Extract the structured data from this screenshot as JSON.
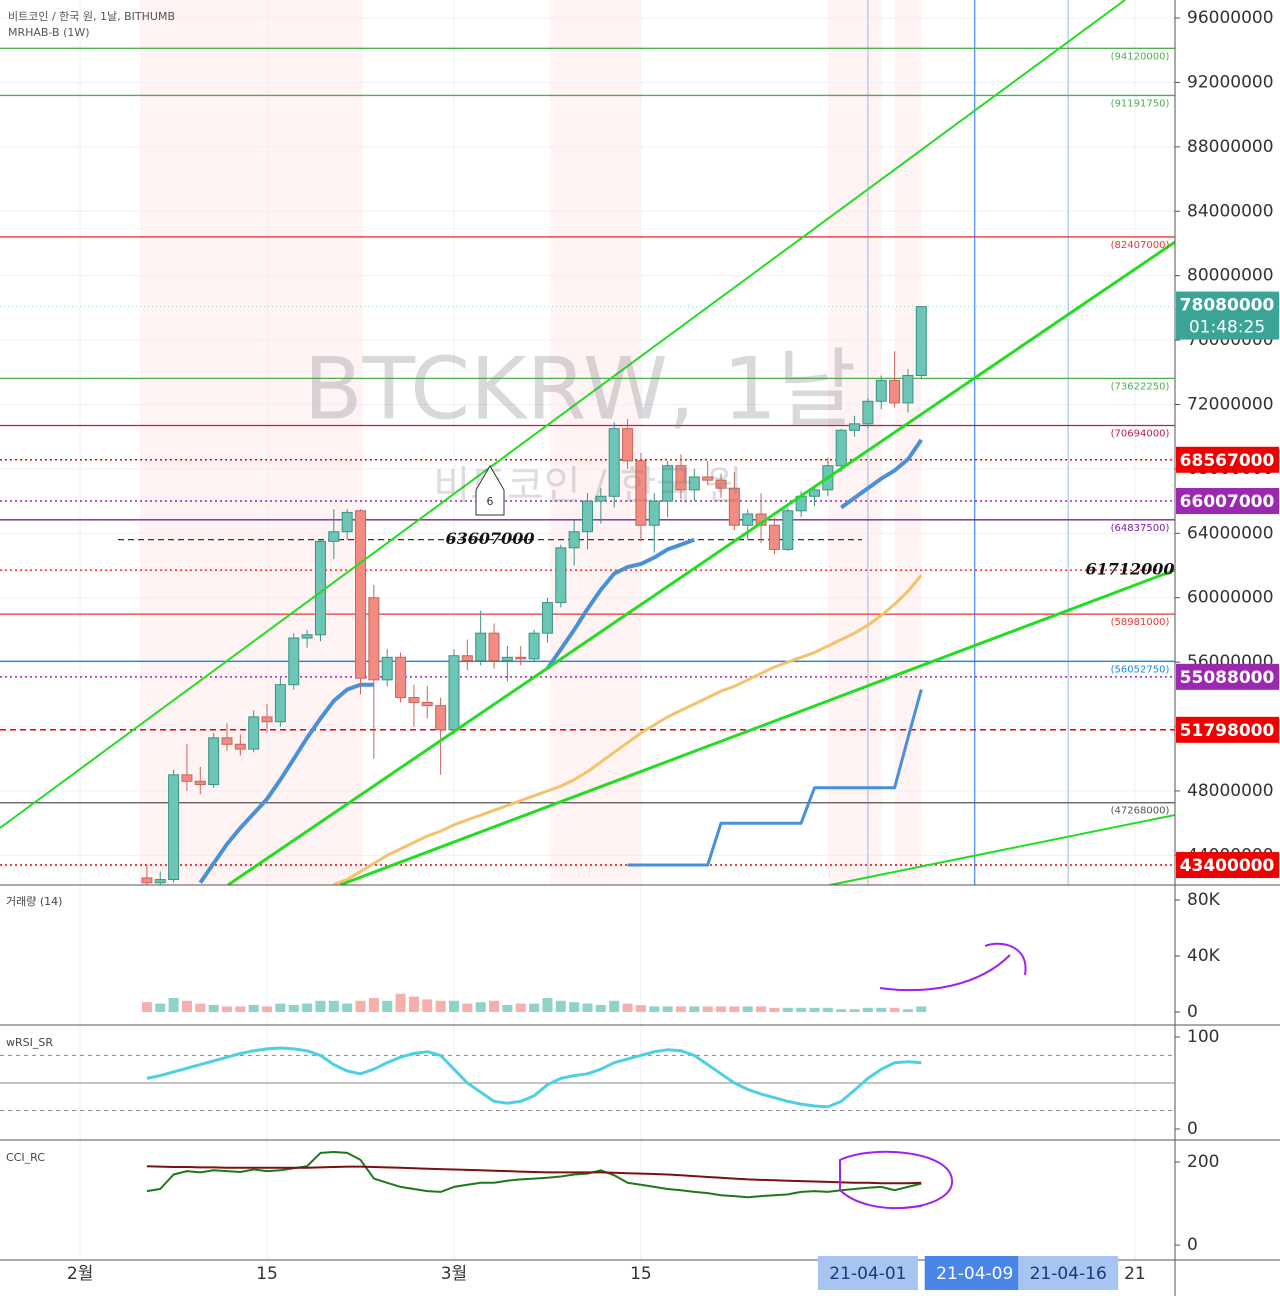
{
  "header": {
    "symbol": "비트코인 / 한국 원, 1날, BITHUMB",
    "indicator": "MRHAB-B (1W)"
  },
  "chart_data": [
    {
      "type": "candlestick",
      "title": "BTCKRW, 1날",
      "subtitle": "비트코인 / 한국 원",
      "callout": "6",
      "x": [
        "21-02-06",
        "21-02-07",
        "21-02-08",
        "21-02-09",
        "21-02-10",
        "21-02-11",
        "21-02-12",
        "21-02-13",
        "21-02-14",
        "21-02-15",
        "21-02-16",
        "21-02-17",
        "21-02-18",
        "21-02-19",
        "21-02-20",
        "21-02-21",
        "21-02-22",
        "21-02-23",
        "21-02-24",
        "21-02-25",
        "21-02-26",
        "21-02-27",
        "21-02-28",
        "21-03-01",
        "21-03-02",
        "21-03-03",
        "21-03-04",
        "21-03-05",
        "21-03-06",
        "21-03-07",
        "21-03-08",
        "21-03-09",
        "21-03-10",
        "21-03-11",
        "21-03-12",
        "21-03-13",
        "21-03-14",
        "21-03-15",
        "21-03-16",
        "21-03-17",
        "21-03-18",
        "21-03-19",
        "21-03-20",
        "21-03-21",
        "21-03-22",
        "21-03-23",
        "21-03-24",
        "21-03-25",
        "21-03-26",
        "21-03-27",
        "21-03-28",
        "21-03-29",
        "21-03-30",
        "21-03-31",
        "21-04-01",
        "21-04-02",
        "21-04-03",
        "21-04-04",
        "21-04-05"
      ],
      "open": [
        42600000,
        42300000,
        42500000,
        49000000,
        48600000,
        48400000,
        51300000,
        50900000,
        50600000,
        52600000,
        52300000,
        54600000,
        57500000,
        57700000,
        63500000,
        64100000,
        65400000,
        60000000,
        54900000,
        56300000,
        53800000,
        53500000,
        53300000,
        51800000,
        56400000,
        56100000,
        57800000,
        56100000,
        56300000,
        56200000,
        57800000,
        59700000,
        63100000,
        64100000,
        66000000,
        66300000,
        70500000,
        68500000,
        64500000,
        66000000,
        68200000,
        66700000,
        67500000,
        67300000,
        66800000,
        64500000,
        65200000,
        64500000,
        63000000,
        65400000,
        66300000,
        66700000,
        68200000,
        70400000,
        70800000,
        72200000,
        73500000,
        72100000,
        73800000
      ],
      "high": [
        43400000,
        43000000,
        49300000,
        50900000,
        49500000,
        51600000,
        52200000,
        51500000,
        53000000,
        53400000,
        55000000,
        57800000,
        58000000,
        63600000,
        65500000,
        65500000,
        65500000,
        60800000,
        56800000,
        56600000,
        54600000,
        54500000,
        53800000,
        56800000,
        57400000,
        59200000,
        58400000,
        57000000,
        57000000,
        58000000,
        60000000,
        63300000,
        64800000,
        66500000,
        66800000,
        70900000,
        71100000,
        69000000,
        66500000,
        68500000,
        68900000,
        68000000,
        68500000,
        67700000,
        67800000,
        65500000,
        66500000,
        65000000,
        65600000,
        66600000,
        66800000,
        68700000,
        70500000,
        71300000,
        72400000,
        73800000,
        75300000,
        74200000,
        78100000
      ],
      "low": [
        42000000,
        41800000,
        42300000,
        48000000,
        47800000,
        48200000,
        50500000,
        50200000,
        50400000,
        51600000,
        52000000,
        54300000,
        56900000,
        57300000,
        62400000,
        63600000,
        54000000,
        50000000,
        54500000,
        53500000,
        52000000,
        52500000,
        49000000,
        51500000,
        55500000,
        55800000,
        55600000,
        54800000,
        55800000,
        56000000,
        57200000,
        59400000,
        62000000,
        63000000,
        64600000,
        65600000,
        68000000,
        63500000,
        62800000,
        65000000,
        66100000,
        66000000,
        67000000,
        66200000,
        64200000,
        63600000,
        63400000,
        62700000,
        62900000,
        65000000,
        65700000,
        66300000,
        67800000,
        70000000,
        70500000,
        71700000,
        71800000,
        71500000,
        73600000
      ],
      "close": [
        42300000,
        42500000,
        49000000,
        48600000,
        48400000,
        51300000,
        50900000,
        50600000,
        52600000,
        52300000,
        54600000,
        57500000,
        57700000,
        63500000,
        64100000,
        65300000,
        55000000,
        54900000,
        56300000,
        53800000,
        53500000,
        53300000,
        51800000,
        56400000,
        56100000,
        57800000,
        56100000,
        56300000,
        56200000,
        57800000,
        59700000,
        63100000,
        64100000,
        66000000,
        66300000,
        70500000,
        68500000,
        64500000,
        66000000,
        68200000,
        66700000,
        67500000,
        67300000,
        66800000,
        64500000,
        65200000,
        64500000,
        63000000,
        65400000,
        66300000,
        66700000,
        68200000,
        70400000,
        70800000,
        72200000,
        73500000,
        72100000,
        73800000,
        78080000
      ],
      "up_color": "#6cc5b5",
      "down_color": "#f28b82",
      "series": [
        {
          "color": "#4a90d9",
          "width": 4,
          "values": [
            null,
            null,
            null,
            null,
            42300000,
            43500000,
            44700000,
            45700000,
            46600000,
            47500000,
            48700000,
            50000000,
            51300000,
            52500000,
            53600000,
            54300000,
            54600000,
            54600000,
            null,
            null,
            null,
            null,
            null,
            null,
            null,
            null,
            null,
            null,
            null,
            null,
            55600000,
            56800000,
            58000000,
            59300000,
            60500000,
            61500000,
            61900000,
            62100000,
            62500000,
            63000000,
            63300000,
            63600000,
            null,
            null,
            null,
            null,
            null,
            null,
            null,
            null,
            null,
            null,
            65600000,
            66200000,
            66800000,
            67400000,
            67900000,
            68600000,
            69800000
          ]
        },
        {
          "color": "#f5c26b",
          "width": 3,
          "values": [
            null,
            null,
            null,
            null,
            null,
            null,
            null,
            null,
            null,
            null,
            null,
            null,
            null,
            null,
            42200000,
            42500000,
            43000000,
            43500000,
            44000000,
            44400000,
            44800000,
            45200000,
            45500000,
            45900000,
            46200000,
            46500000,
            46800000,
            47100000,
            47400000,
            47700000,
            48000000,
            48300000,
            48700000,
            49200000,
            49800000,
            50400000,
            51000000,
            51600000,
            52100000,
            52600000,
            53000000,
            53400000,
            53800000,
            54200000,
            54500000,
            54900000,
            55300000,
            55700000,
            56000000,
            56300000,
            56600000,
            57000000,
            57400000,
            57800000,
            58300000,
            58900000,
            59600000,
            60400000,
            61400000
          ]
        },
        {
          "color": "#4a90d9",
          "width": 3,
          "values": [
            null,
            null,
            null,
            null,
            null,
            null,
            null,
            null,
            null,
            null,
            null,
            null,
            null,
            null,
            null,
            null,
            null,
            null,
            null,
            null,
            null,
            null,
            null,
            null,
            null,
            null,
            null,
            null,
            null,
            null,
            null,
            null,
            null,
            null,
            null,
            null,
            43400000,
            43400000,
            43400000,
            43400000,
            43400000,
            43400000,
            43400000,
            46000000,
            46000000,
            46000000,
            46000000,
            46000000,
            46000000,
            46000000,
            48200000,
            48200000,
            48200000,
            48200000,
            48200000,
            48200000,
            48200000,
            51300000,
            54300000
          ]
        }
      ],
      "hlines": [
        {
          "value": 94120000,
          "label": "(94120000)",
          "color": "#4caf50"
        },
        {
          "value": 91191750,
          "label": "(91191750)",
          "color": "#4caf50"
        },
        {
          "value": 82407000,
          "label": "(82407000)",
          "color": "#e53935"
        },
        {
          "value": 73622250,
          "label": "(73622250)",
          "color": "#4caf50"
        },
        {
          "value": 70694000,
          "label": "(70694000)",
          "color": "#c2185b"
        },
        {
          "value": 64837500,
          "label": "(64837500)",
          "color": "#7b1fa2"
        },
        {
          "value": 58981000,
          "label": "(58981000)",
          "color": "#e53935"
        },
        {
          "value": 56052750,
          "label": "(56052750)",
          "color": "#1e88e5"
        },
        {
          "value": 47268000,
          "label": "(47268000)",
          "color": "#555555"
        }
      ],
      "price_tags": [
        {
          "value": 68567000,
          "color": "#f00000",
          "style": "dotted"
        },
        {
          "value": 66007000,
          "color": "#9c27b0",
          "style": "dotted"
        },
        {
          "value": 55088000,
          "color": "#9c27b0",
          "style": "dotted"
        },
        {
          "value": 51798000,
          "color": "#f00000",
          "style": "dashed"
        },
        {
          "value": 43400000,
          "color": "#f00000",
          "style": "dotted"
        }
      ],
      "last_price": {
        "value": 78080000,
        "timer": "01:48:25",
        "color": "#3aa596"
      },
      "annotations": [
        {
          "value": 63607000,
          "color": "#333333",
          "style": "dashed"
        },
        {
          "value": 61712000,
          "color": "#f00000",
          "style": "dotted"
        }
      ],
      "vlines": [
        {
          "value": "21-04-01",
          "color": "#a8c4f0"
        },
        {
          "value": "21-04-09",
          "color": "#4a86e8"
        },
        {
          "value": "21-04-16",
          "color": "#a8c4f0"
        }
      ],
      "xlim": [
        "21-01-26",
        "21-04-24"
      ],
      "xticks": [
        {
          "value": "21-02-01",
          "label": "2월"
        },
        {
          "value": "21-02-15",
          "label": "15"
        },
        {
          "value": "21-03-01",
          "label": "3월"
        },
        {
          "value": "21-03-15",
          "label": "15"
        },
        {
          "value": "21-04-21",
          "label": "21"
        }
      ],
      "ylim": [
        42160000,
        97120000
      ],
      "yticks": [
        44000000,
        48000000,
        52000000,
        56000000,
        60000000,
        64000000,
        68000000,
        72000000,
        76000000,
        80000000,
        84000000,
        88000000,
        92000000,
        96000000
      ],
      "grid": true
    },
    {
      "type": "bar",
      "title": "거래량 (14)",
      "up_color": "#8fd3c8",
      "down_color": "#f5b0ac",
      "values": [
        7000,
        6000,
        10000,
        8000,
        6000,
        5000,
        4000,
        4000,
        5000,
        4000,
        6000,
        5000,
        6000,
        8000,
        8000,
        6000,
        8000,
        10000,
        8000,
        13000,
        11000,
        9000,
        8000,
        8000,
        6000,
        7000,
        8000,
        5000,
        6000,
        6000,
        10000,
        8000,
        7000,
        6000,
        5000,
        8000,
        6000,
        5000,
        4000,
        4000,
        4000,
        4000,
        4000,
        4000,
        4000,
        4000,
        4000,
        3000,
        3000,
        3000,
        3000,
        3000,
        2000,
        2000,
        3000,
        3000,
        3000,
        2000,
        4000
      ],
      "ylim": [
        -9300,
        90700
      ],
      "yticks": [
        0,
        {
          "value": 40000,
          "label": "40K"
        },
        {
          "value": 80000,
          "label": "80K"
        }
      ]
    },
    {
      "type": "line",
      "title": "wRSI_SR",
      "series": [
        {
          "color": "#4dd0e1",
          "width": 3,
          "values": [
            55,
            58,
            62,
            66,
            70,
            74,
            78,
            82,
            85,
            87,
            88,
            87,
            85,
            80,
            70,
            63,
            60,
            65,
            72,
            78,
            82,
            84,
            80,
            65,
            50,
            40,
            30,
            28,
            30,
            36,
            48,
            55,
            58,
            60,
            65,
            72,
            76,
            80,
            84,
            86,
            85,
            80,
            70,
            60,
            50,
            43,
            38,
            34,
            30,
            27,
            25,
            24,
            30,
            42,
            55,
            65,
            72,
            73,
            72
          ]
        }
      ],
      "levels": [
        80,
        50,
        20
      ],
      "ylim": [
        -12,
        113
      ],
      "yticks": [
        0,
        100
      ]
    },
    {
      "type": "line",
      "title": "CCI_RC",
      "series": [
        {
          "color": "#1b7a1b",
          "width": 2,
          "values": [
            130,
            135,
            170,
            178,
            175,
            180,
            178,
            176,
            182,
            178,
            180,
            185,
            190,
            222,
            224,
            222,
            205,
            160,
            150,
            140,
            135,
            130,
            128,
            140,
            145,
            150,
            150,
            155,
            158,
            160,
            162,
            165,
            170,
            172,
            180,
            168,
            150,
            145,
            140,
            135,
            132,
            128,
            125,
            120,
            118,
            115,
            118,
            120,
            122,
            128,
            130,
            128,
            132,
            135,
            138,
            140,
            132,
            140,
            148
          ]
        },
        {
          "color": "#7a1010",
          "width": 2,
          "values": [
            190,
            189,
            188,
            188,
            187,
            187,
            186,
            186,
            186,
            186,
            186,
            186,
            186,
            187,
            188,
            189,
            189,
            188,
            187,
            186,
            185,
            184,
            183,
            182,
            181,
            180,
            179,
            178,
            177,
            176,
            175,
            175,
            175,
            175,
            175,
            174,
            173,
            172,
            171,
            170,
            168,
            166,
            164,
            162,
            160,
            158,
            157,
            156,
            155,
            154,
            153,
            152,
            151,
            150,
            150,
            149,
            149,
            149,
            150
          ]
        }
      ],
      "ylim": [
        -36,
        253
      ],
      "yticks": [
        0,
        200
      ]
    }
  ]
}
